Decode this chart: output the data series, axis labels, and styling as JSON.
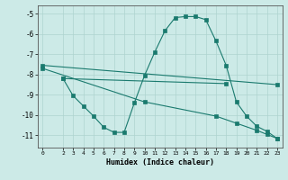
{
  "line1_x": [
    0,
    23
  ],
  "line1_y": [
    -7.55,
    -8.5
  ],
  "line2_x": [
    2,
    18
  ],
  "line2_y": [
    -8.2,
    -8.45
  ],
  "line3_x": [
    2,
    3,
    4,
    5,
    6,
    7,
    8,
    9,
    10,
    11,
    12,
    13,
    14,
    15,
    16,
    17,
    18,
    19,
    20,
    21,
    22,
    23
  ],
  "line3_y": [
    -8.2,
    -9.05,
    -9.55,
    -10.05,
    -10.6,
    -10.85,
    -10.85,
    -9.4,
    -8.05,
    -6.9,
    -5.85,
    -5.2,
    -5.15,
    -5.15,
    -5.3,
    -6.35,
    -7.55,
    -9.35,
    -10.05,
    -10.55,
    -10.8,
    -11.15
  ],
  "line4_x": [
    0,
    10,
    17,
    19,
    21,
    22,
    23
  ],
  "line4_y": [
    -7.7,
    -9.35,
    -10.05,
    -10.4,
    -10.75,
    -10.95,
    -11.15
  ],
  "xlim": [
    -0.5,
    23.5
  ],
  "ylim": [
    -11.6,
    -4.6
  ],
  "yticks": [
    -5,
    -6,
    -7,
    -8,
    -9,
    -10,
    -11
  ],
  "xticks": [
    0,
    2,
    3,
    4,
    5,
    6,
    7,
    8,
    9,
    10,
    11,
    12,
    13,
    14,
    15,
    16,
    17,
    18,
    19,
    20,
    21,
    22,
    23
  ],
  "xlabel": "Humidex (Indice chaleur)",
  "color": "#1a7a6e",
  "bg_color": "#cceae7",
  "grid_color": "#aed4d0"
}
